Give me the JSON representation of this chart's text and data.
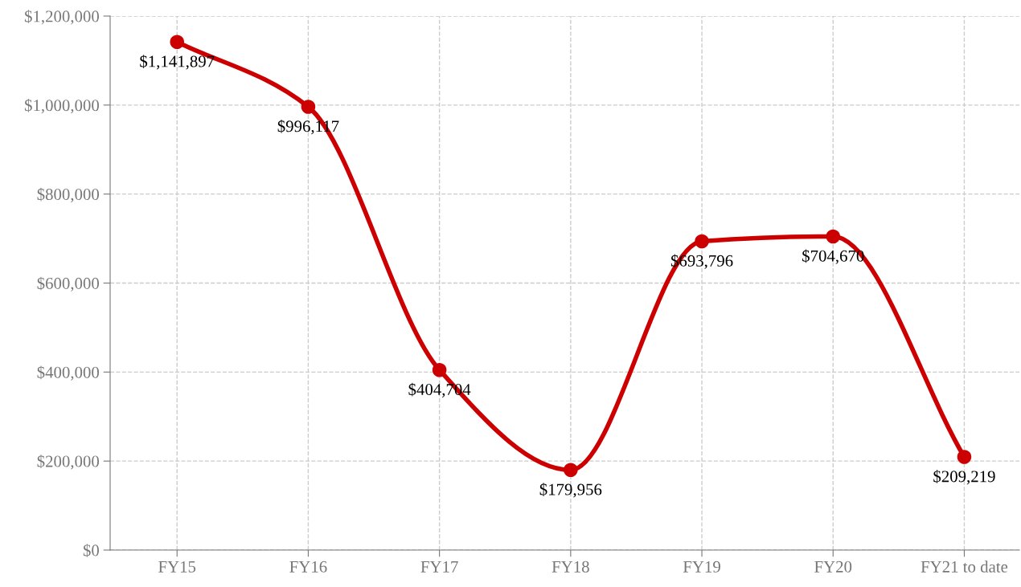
{
  "chart_data": {
    "type": "line",
    "categories": [
      "FY15",
      "FY16",
      "FY17",
      "FY18",
      "FY19",
      "FY20",
      "FY21 to date"
    ],
    "series": [
      {
        "color": "#cc0000",
        "values": [
          1141897,
          996117,
          404704,
          179956,
          693796,
          704670,
          209219
        ],
        "value_labels": [
          "$1,141,897",
          "$996,117",
          "$404,704",
          "$179,956",
          "$693,796",
          "$704,670",
          "$209,219"
        ]
      }
    ],
    "ylim": [
      0,
      1200000
    ],
    "yticks": [
      {
        "value": 0,
        "label": "$0"
      },
      {
        "value": 200000,
        "label": "$200,000"
      },
      {
        "value": 400000,
        "label": "$400,000"
      },
      {
        "value": 600000,
        "label": "$600,000"
      },
      {
        "value": 800000,
        "label": "$800,000"
      },
      {
        "value": 1000000,
        "label": "$1,000,000"
      },
      {
        "value": 1200000,
        "label": "$1,200,000"
      }
    ],
    "grid": true,
    "marker": "circle",
    "line_style": "solid"
  }
}
